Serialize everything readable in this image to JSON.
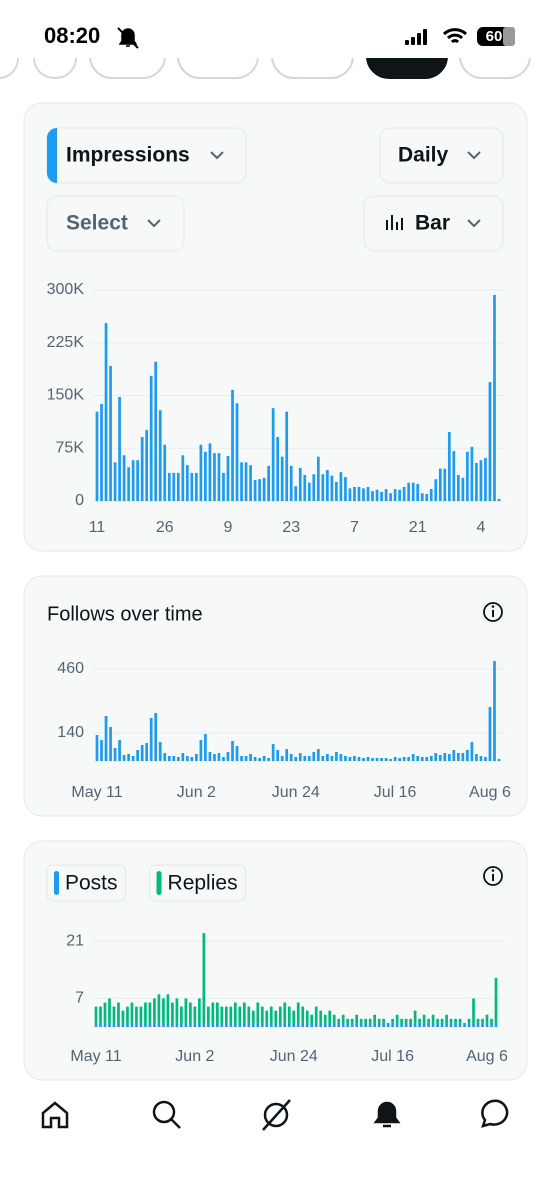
{
  "status_bar": {
    "time": "08:20",
    "battery": "60"
  },
  "controls": {
    "metric": "Impressions",
    "interval": "Daily",
    "compare": "Select",
    "chart_style": "Bar"
  },
  "chart_data": [
    {
      "type": "bar",
      "color": "#1d9bf0",
      "grid": true,
      "categories": [
        "11",
        null,
        null,
        null,
        null,
        null,
        null,
        null,
        null,
        null,
        null,
        null,
        null,
        null,
        null,
        "26",
        null,
        null,
        null,
        null,
        null,
        null,
        null,
        null,
        null,
        null,
        null,
        null,
        null,
        "9",
        null,
        null,
        null,
        null,
        null,
        null,
        null,
        null,
        null,
        null,
        null,
        null,
        null,
        "23",
        null,
        null,
        null,
        null,
        null,
        null,
        null,
        null,
        null,
        null,
        null,
        null,
        null,
        "7",
        null,
        null,
        null,
        null,
        null,
        null,
        null,
        null,
        null,
        null,
        null,
        null,
        null,
        "21",
        null,
        null,
        null,
        null,
        null,
        null,
        null,
        null,
        null,
        null,
        null,
        null,
        null,
        "4",
        null,
        null,
        null,
        null
      ],
      "values": [
        127000,
        138000,
        253000,
        192000,
        55000,
        148000,
        65000,
        48000,
        58000,
        58000,
        91000,
        101000,
        178000,
        198000,
        129000,
        80000,
        40000,
        40000,
        40000,
        65000,
        51000,
        40000,
        40000,
        80000,
        70000,
        82000,
        68000,
        68000,
        40000,
        64000,
        158000,
        139000,
        55000,
        55000,
        51000,
        30000,
        31000,
        33000,
        50000,
        132000,
        91000,
        63000,
        127000,
        50000,
        21000,
        47000,
        37000,
        26000,
        38000,
        63000,
        38000,
        44000,
        36000,
        27000,
        41000,
        34000,
        18000,
        20000,
        20000,
        18000,
        20000,
        14000,
        16000,
        13000,
        17000,
        11000,
        17000,
        16000,
        20000,
        26000,
        26000,
        24000,
        11000,
        10000,
        17000,
        31000,
        46000,
        46000,
        98000,
        71000,
        37000,
        33000,
        70000,
        77000,
        54000,
        58000,
        61000,
        169000,
        293000,
        3000
      ],
      "ylim": [
        0,
        300000
      ],
      "yticks": [
        0,
        {
          "value": 75000,
          "label": "75K"
        },
        {
          "value": 150000,
          "label": "150K"
        },
        {
          "value": 225000,
          "label": "225K"
        },
        {
          "value": 300000,
          "label": "300K"
        }
      ]
    },
    {
      "type": "bar",
      "title": "Follows over time",
      "color": "#1d9bf0",
      "grid": true,
      "categories": [
        "May 11",
        null,
        null,
        null,
        null,
        null,
        null,
        null,
        null,
        null,
        null,
        null,
        null,
        null,
        null,
        null,
        null,
        null,
        null,
        null,
        null,
        null,
        "Jun 2",
        null,
        null,
        null,
        null,
        null,
        null,
        null,
        null,
        null,
        null,
        null,
        null,
        null,
        null,
        null,
        null,
        null,
        null,
        null,
        null,
        null,
        "Jun 24",
        null,
        null,
        null,
        null,
        null,
        null,
        null,
        null,
        null,
        null,
        null,
        null,
        null,
        null,
        null,
        null,
        null,
        null,
        null,
        null,
        null,
        "Jul 16",
        null,
        null,
        null,
        null,
        null,
        null,
        null,
        null,
        null,
        null,
        null,
        null,
        null,
        null,
        null,
        null,
        null,
        null,
        null,
        null,
        "Aug 6",
        null,
        null
      ],
      "values": [
        130,
        105,
        225,
        170,
        65,
        105,
        30,
        35,
        25,
        55,
        80,
        90,
        215,
        240,
        95,
        40,
        25,
        25,
        20,
        40,
        25,
        20,
        35,
        105,
        135,
        45,
        35,
        40,
        20,
        45,
        100,
        75,
        25,
        25,
        35,
        20,
        15,
        25,
        15,
        85,
        55,
        25,
        60,
        35,
        20,
        40,
        25,
        25,
        45,
        60,
        25,
        35,
        25,
        45,
        35,
        25,
        20,
        25,
        20,
        15,
        20,
        15,
        15,
        15,
        15,
        10,
        20,
        15,
        20,
        20,
        35,
        25,
        20,
        20,
        25,
        40,
        30,
        40,
        35,
        55,
        40,
        40,
        55,
        95,
        35,
        25,
        20,
        270,
        500,
        10
      ],
      "ylim": [
        0,
        520
      ],
      "yticks": [
        140,
        460
      ]
    },
    {
      "type": "stacked_bar",
      "grid": true,
      "categories": [
        "May 11",
        null,
        null,
        null,
        null,
        null,
        null,
        null,
        null,
        null,
        null,
        null,
        null,
        null,
        null,
        null,
        null,
        null,
        null,
        null,
        null,
        null,
        "Jun 2",
        null,
        null,
        null,
        null,
        null,
        null,
        null,
        null,
        null,
        null,
        null,
        null,
        null,
        null,
        null,
        null,
        null,
        null,
        null,
        null,
        null,
        "Jun 24",
        null,
        null,
        null,
        null,
        null,
        null,
        null,
        null,
        null,
        null,
        null,
        null,
        null,
        null,
        null,
        null,
        null,
        null,
        null,
        null,
        null,
        "Jul 16",
        null,
        null,
        null,
        null,
        null,
        null,
        null,
        null,
        null,
        null,
        null,
        null,
        null,
        null,
        null,
        null,
        null,
        null,
        null,
        null,
        "Aug 6",
        null,
        null
      ],
      "series": [
        {
          "name": "Posts",
          "color": "#1d9bf0",
          "values": [
            1,
            1,
            1,
            1,
            1,
            1,
            1,
            1,
            1,
            1,
            1,
            1,
            1,
            1,
            1,
            1,
            1,
            1,
            1,
            1,
            1,
            1,
            1,
            1,
            1,
            1,
            1,
            1,
            1,
            1,
            1,
            1,
            1,
            1,
            1,
            1,
            1,
            1,
            1,
            1,
            1,
            1,
            1,
            1,
            1,
            1,
            1,
            1,
            1,
            1,
            1,
            1,
            1,
            1,
            1,
            1,
            1,
            1,
            1,
            1,
            1,
            1,
            1,
            1,
            1,
            1,
            1,
            1,
            1,
            1,
            1,
            1,
            1,
            1,
            1,
            1,
            1,
            1,
            1,
            1,
            1,
            1,
            1,
            1,
            1,
            1,
            1,
            1,
            1,
            1
          ]
        },
        {
          "name": "Replies",
          "color": "#00ba7c",
          "values": [
            4,
            4,
            5,
            6,
            4,
            5,
            3,
            4,
            5,
            4,
            4,
            5,
            5,
            6,
            7,
            6,
            7,
            5,
            6,
            4,
            6,
            5,
            4,
            6,
            22,
            4,
            5,
            5,
            4,
            4,
            4,
            5,
            4,
            5,
            4,
            3,
            5,
            4,
            3,
            4,
            3,
            4,
            5,
            4,
            3,
            5,
            4,
            3,
            2,
            4,
            3,
            2,
            3,
            2,
            1,
            2,
            1,
            1,
            2,
            1,
            1,
            1,
            2,
            1,
            1,
            0,
            1,
            2,
            1,
            1,
            1,
            3,
            1,
            2,
            1,
            2,
            1,
            1,
            2,
            1,
            1,
            1,
            0,
            1,
            6,
            1,
            1,
            2,
            1,
            11
          ]
        }
      ],
      "ylim": [
        0,
        24
      ],
      "yticks": [
        7,
        21
      ]
    }
  ]
}
